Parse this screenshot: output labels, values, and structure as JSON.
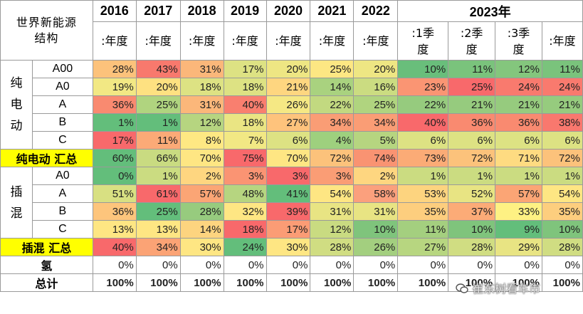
{
  "corner_label": "世界新能源结构",
  "years": [
    "2016",
    "2017",
    "2018",
    "2019",
    "2020",
    "2021",
    "2022"
  ],
  "year_2023": "2023年",
  "annual_label": ":年度",
  "quarter_labels": [
    ":1季度",
    ":2季度",
    ":3季度"
  ],
  "groups": {
    "bev": "纯电动",
    "bev_total": "纯电动 汇总",
    "phev": "插混",
    "phev_total": "插混 汇总"
  },
  "rows": [
    {
      "key": "bev_a00",
      "class": "A00",
      "values": [
        "28%",
        "43%",
        "31%",
        "17%",
        "20%",
        "25%",
        "20%",
        "10%",
        "11%",
        "12%",
        "11%"
      ],
      "colors": [
        "#fcc27b",
        "#f8796d",
        "#fbb77a",
        "#dde283",
        "#eee683",
        "#fde783",
        "#eee683",
        "#69be7b",
        "#7ac37c",
        "#84c67d",
        "#7ac37c"
      ]
    },
    {
      "key": "bev_a0",
      "class": "A0",
      "values": [
        "19%",
        "20%",
        "18%",
        "18%",
        "21%",
        "14%",
        "16%",
        "23%",
        "25%",
        "24%",
        "24%"
      ],
      "colors": [
        "#f2e884",
        "#fee181",
        "#dde283",
        "#dde283",
        "#fed680",
        "#a9d27f",
        "#cbdc81",
        "#fa9573",
        "#f8696b",
        "#f97a6e",
        "#f97a6e"
      ]
    },
    {
      "key": "bev_a",
      "class": "A",
      "values": [
        "36%",
        "25%",
        "31%",
        "40%",
        "26%",
        "22%",
        "25%",
        "22%",
        "21%",
        "21%",
        "21%"
      ],
      "colors": [
        "#f98a70",
        "#b0d47f",
        "#fbb77a",
        "#f97f6f",
        "#f5e884",
        "#c2d980",
        "#b0d47f",
        "#96cb7e",
        "#96cb7e",
        "#96cb7e",
        "#96cb7e"
      ]
    },
    {
      "key": "bev_b",
      "class": "B",
      "values": [
        "1%",
        "1%",
        "12%",
        "18%",
        "27%",
        "34%",
        "34%",
        "40%",
        "36%",
        "36%",
        "38%"
      ],
      "colors": [
        "#63be7b",
        "#63be7b",
        "#b6d580",
        "#eae583",
        "#fec37c",
        "#fa9d75",
        "#fa9d75",
        "#f8696b",
        "#f98a70",
        "#f98a70",
        "#f9786e"
      ]
    },
    {
      "key": "bev_c",
      "class": "C",
      "values": [
        "17%",
        "11%",
        "8%",
        "7%",
        "6%",
        "4%",
        "5%",
        "6%",
        "6%",
        "6%",
        "6%"
      ],
      "colors": [
        "#f8696b",
        "#fbaa77",
        "#fee883",
        "#f2e884",
        "#dde283",
        "#9ed07e",
        "#b6d580",
        "#dde283",
        "#dde283",
        "#dde283",
        "#dde283"
      ]
    },
    {
      "key": "bev_sum",
      "class": "",
      "values": [
        "60%",
        "66%",
        "70%",
        "75%",
        "70%",
        "72%",
        "74%",
        "73%",
        "72%",
        "71%",
        "72%"
      ],
      "colors": [
        "#63be7b",
        "#c9db81",
        "#fee683",
        "#f8696b",
        "#fee683",
        "#fcc27b",
        "#f99372",
        "#fbab76",
        "#fcc27b",
        "#fedb81",
        "#fcc27b"
      ]
    },
    {
      "key": "phev_a0",
      "class": "A0",
      "values": [
        "0%",
        "1%",
        "2%",
        "3%",
        "3%",
        "3%",
        "2%",
        "1%",
        "1%",
        "1%",
        "1%"
      ],
      "colors": [
        "#63be7b",
        "#cbdc81",
        "#fed680",
        "#fa9473",
        "#f8696b",
        "#fa9d75",
        "#fed680",
        "#cbdc81",
        "#cbdc81",
        "#cbdc81",
        "#cbdc81"
      ]
    },
    {
      "key": "phev_a",
      "class": "A",
      "values": [
        "51%",
        "61%",
        "57%",
        "48%",
        "41%",
        "54%",
        "58%",
        "53%",
        "52%",
        "57%",
        "54%"
      ],
      "colors": [
        "#d8e082",
        "#f8696b",
        "#fba575",
        "#b6d580",
        "#63be7b",
        "#fee683",
        "#fba07d",
        "#fdd47f",
        "#e8e483",
        "#fba575",
        "#fee683"
      ]
    },
    {
      "key": "phev_b",
      "class": "B",
      "values": [
        "36%",
        "25%",
        "28%",
        "32%",
        "39%",
        "31%",
        "31%",
        "35%",
        "37%",
        "33%",
        "35%"
      ],
      "colors": [
        "#fdc57c",
        "#63be7b",
        "#97cb7e",
        "#fee683",
        "#f8696b",
        "#e8e483",
        "#e8e483",
        "#fdce7e",
        "#fcab77",
        "#fef183",
        "#fdce7e"
      ]
    },
    {
      "key": "phev_c",
      "class": "C",
      "values": [
        "13%",
        "13%",
        "14%",
        "18%",
        "17%",
        "12%",
        "10%",
        "11%",
        "10%",
        "9%",
        "10%"
      ],
      "colors": [
        "#fee683",
        "#fee683",
        "#fdd47f",
        "#f8696b",
        "#fb9c75",
        "#c9db81",
        "#7fc47c",
        "#a4cf7f",
        "#7fc47c",
        "#63be7b",
        "#7fc47c"
      ]
    },
    {
      "key": "phev_sum",
      "class": "",
      "values": [
        "40%",
        "34%",
        "30%",
        "24%",
        "30%",
        "28%",
        "26%",
        "27%",
        "28%",
        "29%",
        "28%"
      ],
      "colors": [
        "#f8696b",
        "#fba375",
        "#fee683",
        "#63be7b",
        "#fee683",
        "#d0dd82",
        "#a3cf7f",
        "#b7d680",
        "#d0dd82",
        "#e8e483",
        "#d0dd82"
      ]
    },
    {
      "key": "hydrogen",
      "class": "",
      "values": [
        "0%",
        "0%",
        "0%",
        "0%",
        "0%",
        "0%",
        "0%",
        "0%",
        "0%",
        "0%",
        "0%"
      ],
      "colors": [
        "#ffffff",
        "#ffffff",
        "#ffffff",
        "#ffffff",
        "#ffffff",
        "#ffffff",
        "#ffffff",
        "#ffffff",
        "#ffffff",
        "#ffffff",
        "#ffffff"
      ]
    },
    {
      "key": "total",
      "class": "",
      "values": [
        "100%",
        "100%",
        "100%",
        "100%",
        "100%",
        "100%",
        "100%",
        "100%",
        "100%",
        "100%",
        "100%"
      ],
      "colors": [
        "#ffffff",
        "#ffffff",
        "#ffffff",
        "#ffffff",
        "#ffffff",
        "#ffffff",
        "#ffffff",
        "#ffffff",
        "#ffffff",
        "#ffffff",
        "#ffffff"
      ]
    }
  ],
  "row_labels": {
    "hydrogen": "氢",
    "total": "总计"
  },
  "watermark": "崔东树看车市"
}
